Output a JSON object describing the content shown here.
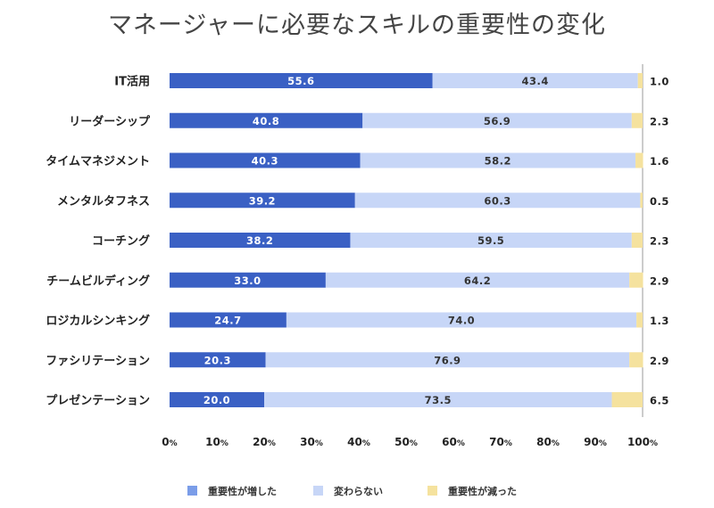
{
  "chart_data": {
    "type": "bar",
    "orientation": "horizontal",
    "stacked": true,
    "title": "マネージャーに必要なスキルの重要性の変化",
    "categories": [
      "IT活用",
      "リーダーシップ",
      "タイムマネジメント",
      "メンタルタフネス",
      "コーチング",
      "チームビルディング",
      "ロジカルシンキング",
      "ファシリテーション",
      "プレゼンテーション"
    ],
    "series": [
      {
        "name": "重要性が増した",
        "color": "#3a60c4",
        "values": [
          55.6,
          40.8,
          40.3,
          39.2,
          38.2,
          33.0,
          24.7,
          20.3,
          20.0
        ]
      },
      {
        "name": "変わらない",
        "color": "#c7d6f7",
        "values": [
          43.4,
          56.9,
          58.2,
          60.3,
          59.5,
          64.2,
          74.0,
          76.9,
          73.5
        ]
      },
      {
        "name": "重要性が減った",
        "color": "#f5e29e",
        "values": [
          1.0,
          2.3,
          1.6,
          0.5,
          2.3,
          2.9,
          1.3,
          2.9,
          6.5
        ]
      }
    ],
    "xlim": [
      0,
      100
    ],
    "xticks": [
      0,
      10,
      20,
      30,
      40,
      50,
      60,
      70,
      80,
      90,
      100
    ],
    "tick_suffix": "%",
    "xlabel": "",
    "ylabel": "",
    "legend_position": "bottom",
    "legend_colors": [
      "#7b9de8",
      "#c7d6f7",
      "#f5e29e"
    ]
  }
}
